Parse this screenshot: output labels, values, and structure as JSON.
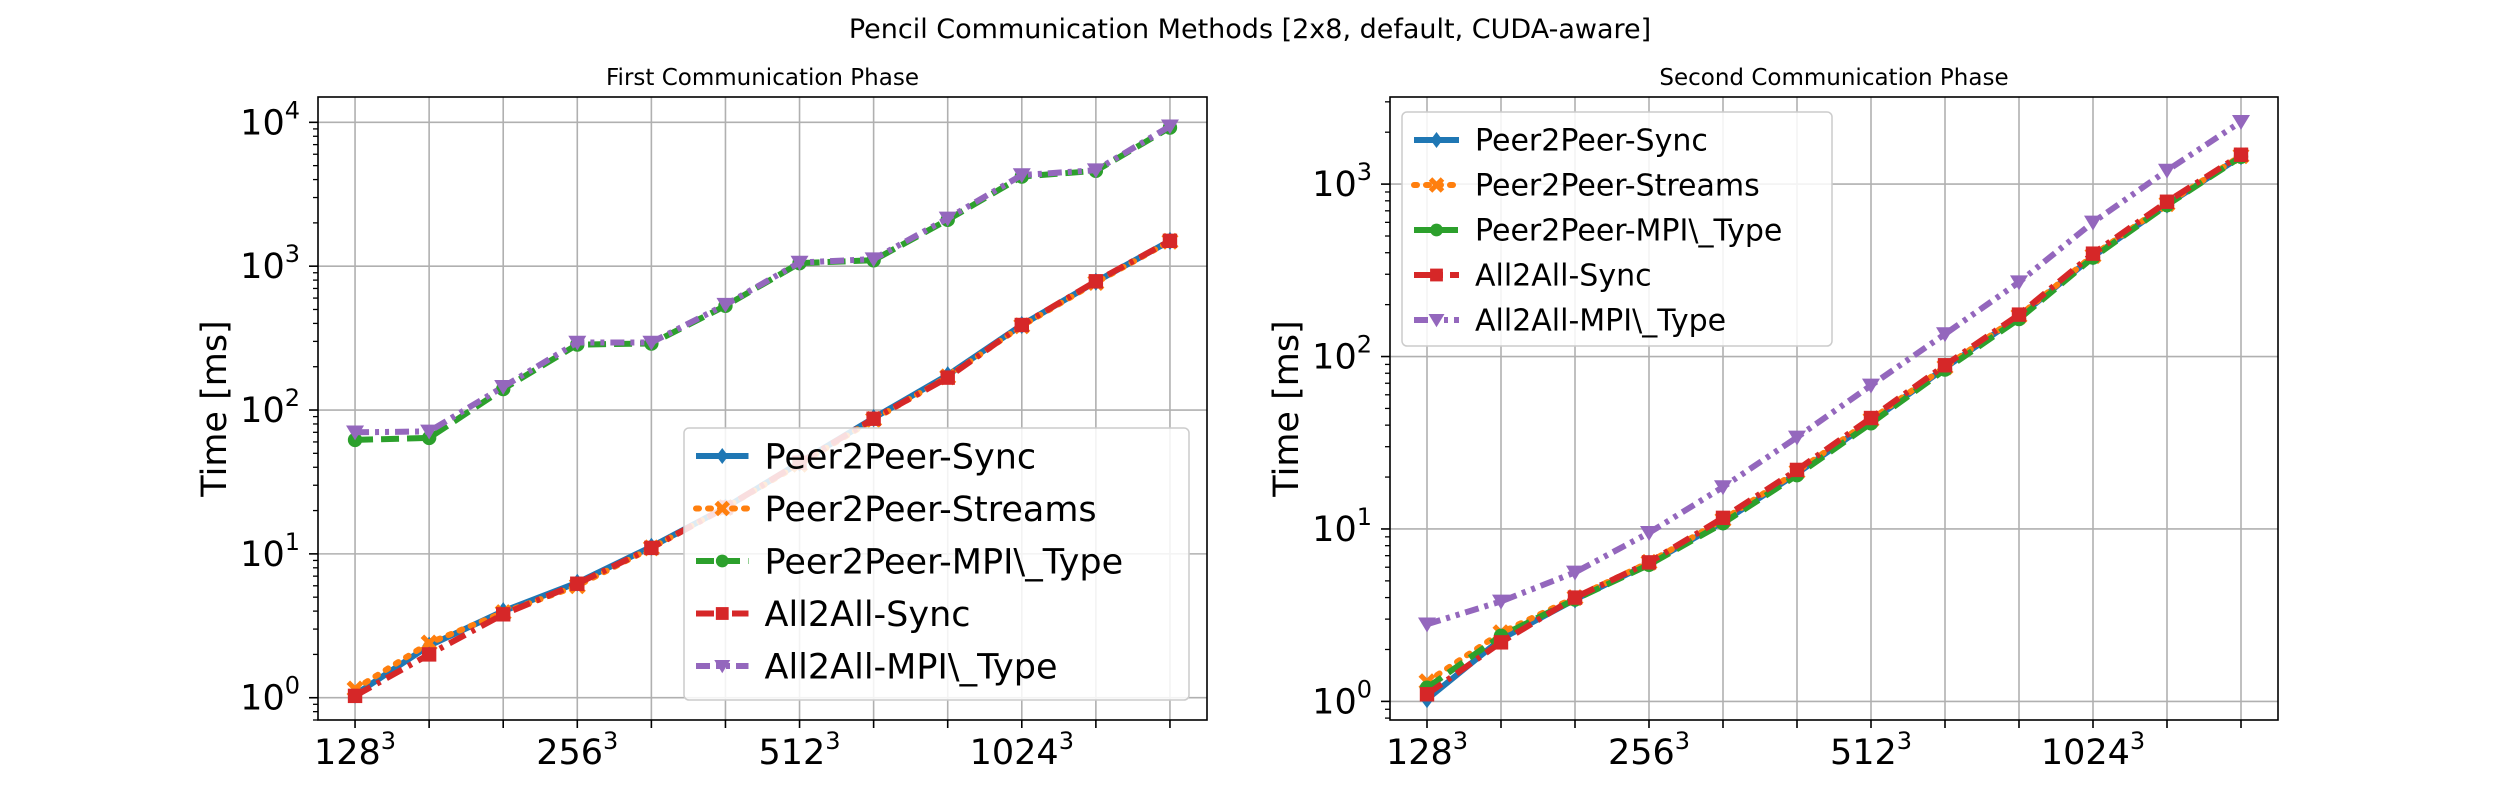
{
  "figure": {
    "suptitle": "Pencil Communication Methods [2x8, default, CUDA-aware]"
  },
  "chart_data": [
    {
      "type": "line",
      "title": "First Communication Phase",
      "xlabel": "",
      "ylabel": "Time [ms]",
      "yscale": "log",
      "ylim": [
        0.7,
        15000
      ],
      "xlim": [
        -0.5,
        11.5
      ],
      "grid": true,
      "legend_position": "lower right",
      "x": [
        0,
        1,
        2,
        3,
        4,
        5,
        6,
        7,
        8,
        9,
        10,
        11
      ],
      "xticks": [
        {
          "pos": 0,
          "base": "128",
          "exp": "3"
        },
        {
          "pos": 3,
          "base": "256",
          "exp": "3"
        },
        {
          "pos": 6,
          "base": "512",
          "exp": "3"
        },
        {
          "pos": 9,
          "base": "1024",
          "exp": "3"
        }
      ],
      "yticks": [
        {
          "value": 1,
          "base": "10",
          "exp": "0"
        },
        {
          "value": 10,
          "base": "10",
          "exp": "1"
        },
        {
          "value": 100,
          "base": "10",
          "exp": "2"
        },
        {
          "value": 1000,
          "base": "10",
          "exp": "3"
        },
        {
          "value": 10000,
          "base": "10",
          "exp": "4"
        }
      ],
      "series": [
        {
          "name": "Peer2Peer-Sync",
          "color": "#1f77b4",
          "dash": "solid",
          "marker": "diamond",
          "values": [
            1.05,
            2.3,
            4.0,
            6.3,
            11.2,
            21,
            43,
            88,
            175,
            390,
            780,
            1500
          ]
        },
        {
          "name": "Peer2Peer-Streams",
          "color": "#ff7f0e",
          "dash": "dotted",
          "marker": "x",
          "values": [
            1.15,
            2.4,
            3.9,
            6.0,
            11.0,
            21,
            42,
            86,
            170,
            385,
            770,
            1490
          ]
        },
        {
          "name": "Peer2Peer-MPI\\_Type",
          "color": "#2ca02c",
          "dash": "dashed",
          "marker": "circle",
          "values": [
            62,
            64,
            140,
            285,
            290,
            530,
            1050,
            1100,
            2100,
            4200,
            4600,
            9200
          ]
        },
        {
          "name": "All2All-Sync",
          "color": "#d62728",
          "dash": "dashdot",
          "marker": "square",
          "values": [
            1.03,
            2.0,
            3.8,
            6.2,
            11.0,
            21,
            43,
            87,
            168,
            390,
            785,
            1500
          ]
        },
        {
          "name": "All2All-MPI\\_Type",
          "color": "#9467bd",
          "dash": "dashdotdot",
          "marker": "triangle_down",
          "values": [
            70,
            71,
            145,
            295,
            295,
            540,
            1060,
            1120,
            2150,
            4300,
            4650,
            9400
          ]
        }
      ]
    },
    {
      "type": "line",
      "title": "Second Communication Phase",
      "xlabel": "",
      "ylabel": "Time [ms]",
      "yscale": "log",
      "ylim": [
        0.78,
        3200
      ],
      "xlim": [
        -0.5,
        11.5
      ],
      "grid": true,
      "legend_position": "upper left",
      "x": [
        0,
        1,
        2,
        3,
        4,
        5,
        6,
        7,
        8,
        9,
        10,
        11
      ],
      "xticks": [
        {
          "pos": 0,
          "base": "128",
          "exp": "3"
        },
        {
          "pos": 3,
          "base": "256",
          "exp": "3"
        },
        {
          "pos": 6,
          "base": "512",
          "exp": "3"
        },
        {
          "pos": 9,
          "base": "1024",
          "exp": "3"
        }
      ],
      "yticks": [
        {
          "value": 1,
          "base": "10",
          "exp": "0"
        },
        {
          "value": 10,
          "base": "10",
          "exp": "1"
        },
        {
          "value": 100,
          "base": "10",
          "exp": "2"
        },
        {
          "value": 1000,
          "base": "10",
          "exp": "3"
        }
      ],
      "series": [
        {
          "name": "Peer2Peer-Sync",
          "color": "#1f77b4",
          "dash": "solid",
          "marker": "diamond",
          "values": [
            1.03,
            2.3,
            3.9,
            6.3,
            11.0,
            21,
            42,
            86,
            170,
            380,
            760,
            1450
          ]
        },
        {
          "name": "Peer2Peer-Streams",
          "color": "#ff7f0e",
          "dash": "dotted",
          "marker": "x",
          "values": [
            1.3,
            2.5,
            4.0,
            6.4,
            11.3,
            21.5,
            43,
            87,
            172,
            385,
            770,
            1460
          ]
        },
        {
          "name": "Peer2Peer-MPI\\_Type",
          "color": "#2ca02c",
          "dash": "dashed",
          "marker": "circle",
          "values": [
            1.2,
            2.4,
            3.9,
            6.2,
            10.8,
            20.5,
            41,
            84,
            165,
            375,
            755,
            1440
          ]
        },
        {
          "name": "All2All-Sync",
          "color": "#d62728",
          "dash": "dashdot",
          "marker": "square",
          "values": [
            1.1,
            2.2,
            4.0,
            6.4,
            11.6,
            22,
            44,
            89,
            175,
            395,
            790,
            1480
          ]
        },
        {
          "name": "All2All-MPI\\_Type",
          "color": "#9467bd",
          "dash": "dashdotdot",
          "marker": "triangle_down",
          "values": [
            2.8,
            3.8,
            5.6,
            9.5,
            17.5,
            34,
            68,
            135,
            270,
            600,
            1200,
            2300
          ]
        }
      ]
    }
  ]
}
